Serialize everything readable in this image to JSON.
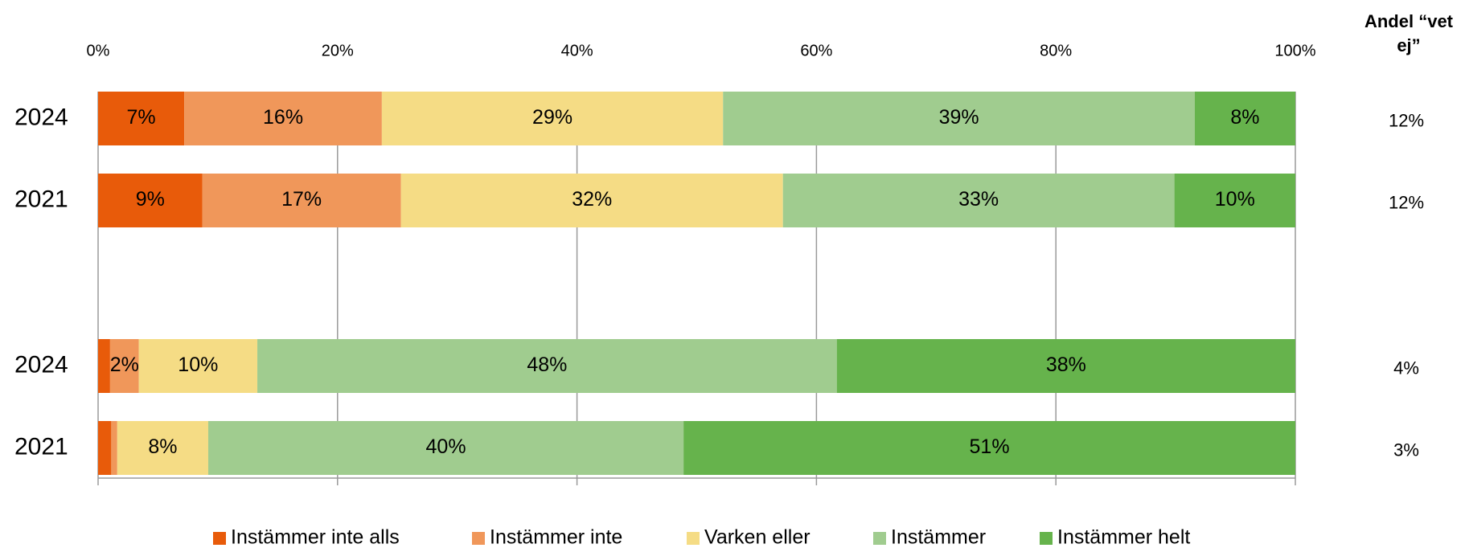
{
  "chart_data": {
    "type": "stacked-bar-horizontal",
    "categories": [
      "2024",
      "2021",
      "2024",
      "2021"
    ],
    "xlim": [
      0,
      100
    ],
    "xticks": [
      {
        "value": 0,
        "label": "0%"
      },
      {
        "value": 20,
        "label": "20%"
      },
      {
        "value": 40,
        "label": "40%"
      },
      {
        "value": 60,
        "label": "60%"
      },
      {
        "value": 80,
        "label": "80%"
      },
      {
        "value": 100,
        "label": "100%"
      }
    ],
    "grid": true,
    "legend": "bottom",
    "series": [
      {
        "name": "Instämmer inte alls",
        "color": "#e85b0a",
        "values": [
          7.2,
          8.7,
          1.0,
          1.1
        ],
        "value_labels": [
          "7%",
          "9%",
          null,
          null
        ]
      },
      {
        "name": "Instämmer inte",
        "color": "#f0975a",
        "values": [
          16.5,
          16.6,
          2.4,
          0.5
        ],
        "value_labels": [
          "16%",
          "17%",
          "2%",
          null
        ]
      },
      {
        "name": "Varken eller",
        "color": "#f5dc85",
        "values": [
          28.5,
          31.9,
          9.9,
          7.6
        ],
        "value_labels": [
          "29%",
          "32%",
          "10%",
          "8%"
        ]
      },
      {
        "name": "Instämmer",
        "color": "#a0cc8f",
        "values": [
          39.4,
          32.7,
          48.4,
          39.7
        ],
        "value_labels": [
          "39%",
          "33%",
          "48%",
          "40%"
        ]
      },
      {
        "name": "Instämmer helt",
        "color": "#66b34c",
        "values": [
          8.4,
          10.1,
          38.3,
          51.1
        ],
        "value_labels": [
          "8%",
          "10%",
          "38%",
          "51%"
        ]
      }
    ],
    "vet_ej": {
      "title": "Andel “vet ej”",
      "values": [
        12,
        12,
        4,
        3
      ],
      "value_labels": [
        "12%",
        "12%",
        "4%",
        "3%"
      ]
    }
  }
}
